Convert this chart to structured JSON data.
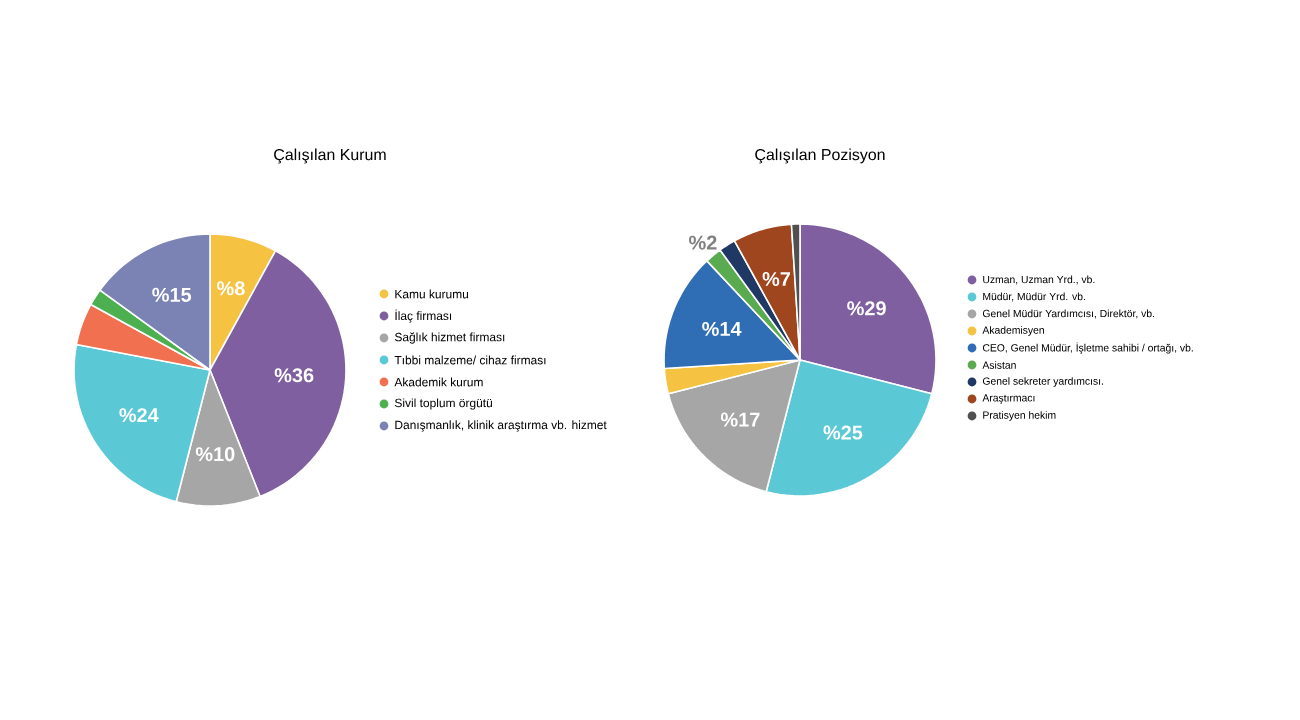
{
  "chart_data": [
    {
      "type": "pie",
      "title": "Çalışılan Kurum",
      "categories": [
        "Kamu kurumu",
        "İlaç firması",
        "Sağlık hizmet firması",
        "Tıbbi malzeme/ cihaz firması",
        "Akademik kurum",
        "Sivil toplum örgütü",
        "Danışmanlık, klinik araştırma vb. hizmet"
      ],
      "values": [
        8,
        36,
        10,
        24,
        5,
        2,
        15
      ],
      "value_labels": [
        "%8",
        "%36",
        "%10",
        "%24",
        null,
        null,
        "%15"
      ],
      "colors": [
        "#f5c242",
        "#7f5fa0",
        "#a6a6a6",
        "#5bc8d5",
        "#f07050",
        "#4caf50",
        "#7b83b5"
      ],
      "legend": "right"
    },
    {
      "type": "pie",
      "title": "Çalışılan Pozisyon",
      "categories": [
        "Uzman, Uzman Yrd., vb.",
        "Müdür, Müdür Yrd. vb.",
        "Genel Müdür Yardımcısı, Direktör, vb.",
        "Akademisyen",
        "CEO, Genel Müdür, İşletme sahibi / ortağı, vb.",
        "Asistan",
        "Genel sekreter yardımcısı.",
        "Araştırmacı",
        "Pratisyen hekim"
      ],
      "values": [
        29,
        25,
        17,
        3,
        14,
        2,
        2,
        7,
        1
      ],
      "value_labels": [
        "%29",
        "%25",
        "%17",
        null,
        "%14",
        "%2",
        null,
        "%7",
        null
      ],
      "colors": [
        "#7f5fa0",
        "#5bc8d5",
        "#a6a6a6",
        "#f5c242",
        "#2f6db5",
        "#5aaa50",
        "#1f3864",
        "#a0461e",
        "#505050"
      ],
      "legend": "right"
    }
  ]
}
